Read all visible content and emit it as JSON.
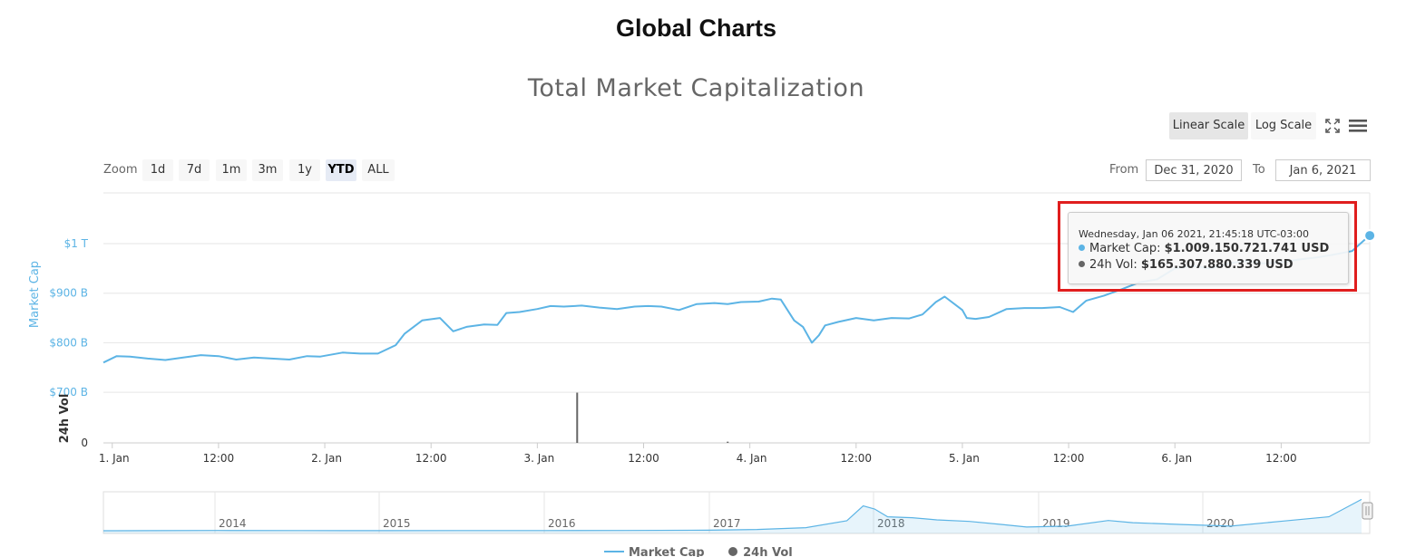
{
  "page": {
    "title": "Global Charts"
  },
  "toolbar": {
    "linear_label": "Linear Scale",
    "log_label": "Log Scale",
    "fullscreen_icon": "fullscreen-icon",
    "menu_icon": "hamburger-menu-icon"
  },
  "zoom": {
    "label": "Zoom",
    "buttons": [
      "1d",
      "7d",
      "1m",
      "3m",
      "1y",
      "YTD",
      "ALL"
    ],
    "active": "YTD"
  },
  "range": {
    "from_label": "From",
    "from_value": "Dec 31, 2020",
    "to_label": "To",
    "to_value": "Jan 6, 2021"
  },
  "tooltip": {
    "date": "Wednesday, Jan 06 2021, 21:45:18 UTC-03:00",
    "market_cap_label": "Market Cap:",
    "market_cap_value": "$1.009.150.721.741 USD",
    "volume_label": "24h Vol:",
    "volume_value": "$165.307.880.339 USD"
  },
  "colors": {
    "market_cap": "#5cb4e5",
    "volume": "#666666",
    "highlight": "#e01e1e",
    "axis_label": "#5cb4e5"
  },
  "chart_data": {
    "type": "line",
    "title": "Total Market Capitalization",
    "y_axis_title": "Market Cap",
    "y2_axis_title": "24h Vol",
    "y_ticks": [
      "$1 T",
      "$900 B",
      "$800 B",
      "$700 B"
    ],
    "y_tick_values": [
      1000,
      900,
      800,
      700
    ],
    "y2_ticks": [
      "0"
    ],
    "ylim": [
      650,
      1060
    ],
    "y_unit": "billion USD",
    "x_ticks": [
      "1. Jan",
      "12:00",
      "2. Jan",
      "12:00",
      "3. Jan",
      "12:00",
      "4. Jan",
      "12:00",
      "5. Jan",
      "12:00",
      "6. Jan",
      "12:00"
    ],
    "x_tick_hours": [
      24,
      36,
      48,
      60,
      72,
      84,
      96,
      108,
      120,
      132,
      144,
      156
    ],
    "xlim_hours": [
      23,
      166
    ],
    "x_origin": "2020-12-31 00:00",
    "series": [
      {
        "name": "Market Cap",
        "x_hours": [
          23.0,
          24.5,
          26,
          28,
          30,
          32,
          34,
          36,
          38,
          40,
          42,
          44,
          46,
          47.5,
          50,
          52,
          54,
          56,
          57,
          59,
          61,
          62.5,
          64,
          66,
          67.5,
          68.5,
          70,
          72,
          73.5,
          75,
          77,
          79,
          81,
          83,
          84.5,
          86,
          88,
          90,
          92,
          93.5,
          95,
          97,
          98.5,
          99.5,
          101,
          102,
          103,
          103.8,
          104.5,
          106,
          108,
          110,
          112,
          114,
          115.5,
          117,
          118,
          120,
          120.5,
          121.5,
          123,
          125,
          127,
          129,
          131,
          132.5,
          134,
          136,
          138,
          140,
          142,
          144,
          146,
          148,
          150,
          152,
          154,
          156,
          158,
          160,
          162,
          164,
          165.5
        ],
        "values": [
          760,
          773,
          772,
          768,
          765,
          770,
          775,
          773,
          766,
          770,
          768,
          766,
          773,
          772,
          780,
          778,
          778,
          795,
          818,
          845,
          850,
          823,
          832,
          837,
          836,
          860,
          862,
          868,
          874,
          873,
          875,
          871,
          868,
          873,
          874,
          873,
          866,
          878,
          880,
          878,
          882,
          883,
          889,
          887,
          845,
          832,
          800,
          815,
          835,
          842,
          850,
          845,
          850,
          849,
          857,
          882,
          893,
          866,
          850,
          848,
          852,
          868,
          870,
          870,
          872,
          862,
          885,
          895,
          908,
          922,
          928,
          950,
          955,
          950,
          960,
          965,
          960,
          962,
          968,
          972,
          978,
          985,
          1009
        ]
      },
      {
        "name": "24h Vol",
        "bars": [
          {
            "x_hours": 76.5,
            "value": 165
          },
          {
            "x_hours": 93.5,
            "value": 4
          }
        ],
        "ylim": [
          0,
          200
        ]
      }
    ],
    "navigator": {
      "years": [
        "2014",
        "2015",
        "2016",
        "2017",
        "2018",
        "2019",
        "2020"
      ],
      "x": [
        2013.3,
        2013.6,
        2014.0,
        2014.5,
        2015.0,
        2015.5,
        2016.0,
        2016.5,
        2017.0,
        2017.3,
        2017.6,
        2017.85,
        2017.95,
        2018.02,
        2018.1,
        2018.25,
        2018.4,
        2018.6,
        2018.8,
        2018.95,
        2019.2,
        2019.45,
        2019.6,
        2019.9,
        2020.2,
        2020.5,
        2020.8,
        2021.0
      ],
      "values": [
        1,
        2,
        8,
        6,
        4,
        5,
        7,
        10,
        18,
        40,
        100,
        320,
        800,
        700,
        450,
        420,
        350,
        300,
        200,
        120,
        150,
        330,
        260,
        200,
        150,
        300,
        450,
        1009
      ],
      "xlim": [
        2013.3,
        2021.05
      ],
      "ylim": [
        0,
        1050
      ]
    },
    "legend": [
      "Market Cap",
      "24h Vol"
    ],
    "legend_position": "bottom-center",
    "grid": true
  }
}
